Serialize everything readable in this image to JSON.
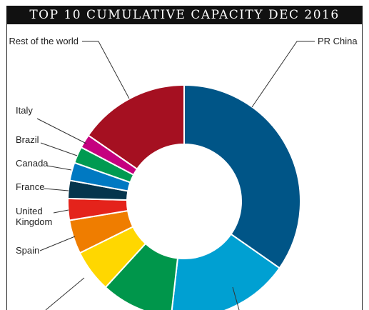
{
  "chart_data": {
    "type": "pie",
    "title": "TOP 10 CUMULATIVE CAPACITY DEC 2016",
    "donut": true,
    "legend": "none",
    "labels_visible": [
      "PR China",
      "Rest of the world",
      "Italy",
      "Brazil",
      "Canada",
      "France",
      "United",
      "Kingdom",
      "Spain"
    ],
    "slices": [
      {
        "name": "PR China",
        "value": 34.7,
        "color": "#005587"
      },
      {
        "name": "",
        "value": 17.1,
        "color": "#00a0d2"
      },
      {
        "name": "",
        "value": 10.0,
        "color": "#00964b"
      },
      {
        "name": "",
        "value": 5.9,
        "color": "#ffd700"
      },
      {
        "name": "Spain",
        "value": 4.7,
        "color": "#ef7d00"
      },
      {
        "name": "United Kingdom",
        "value": 3.0,
        "color": "#e4231b"
      },
      {
        "name": "France",
        "value": 2.5,
        "color": "#05354d"
      },
      {
        "name": "Canada",
        "value": 2.5,
        "color": "#0079c2"
      },
      {
        "name": "Brazil",
        "value": 2.3,
        "color": "#009a51"
      },
      {
        "name": "Italy",
        "value": 1.9,
        "color": "#c5007f"
      },
      {
        "name": "Rest of the world",
        "value": 15.4,
        "color": "#a51021"
      }
    ]
  }
}
